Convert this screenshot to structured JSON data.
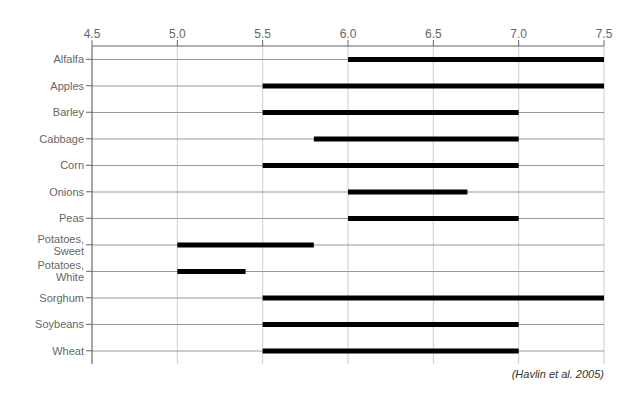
{
  "chart_data": {
    "type": "bar",
    "orientation": "horizontal",
    "annotation": "(Havlin et al. 2005)",
    "categories": [
      "Alfalfa",
      "Apples",
      "Barley",
      "Cabbage",
      "Corn",
      "Onions",
      "Peas",
      "Potatoes,\nSweet",
      "Potatoes,\nWhite",
      "Sorghum",
      "Soybeans",
      "Wheat"
    ],
    "values": [
      [
        6.0,
        7.5
      ],
      [
        5.5,
        7.5
      ],
      [
        5.5,
        7.0
      ],
      [
        5.8,
        7.0
      ],
      [
        5.5,
        7.0
      ],
      [
        6.0,
        6.7
      ],
      [
        6.0,
        7.0
      ],
      [
        5.0,
        5.8
      ],
      [
        5.0,
        5.4
      ],
      [
        5.5,
        7.5
      ],
      [
        5.5,
        7.0
      ],
      [
        5.5,
        7.0
      ]
    ],
    "color": "#000000",
    "xlim": [
      4.5,
      7.5
    ],
    "xticks": [
      4.5,
      {
        "value": 5,
        "label": "5.0"
      },
      5.5,
      {
        "value": 6,
        "label": "6.0"
      },
      6.5,
      {
        "value": 7,
        "label": "7.0"
      },
      7.5
    ],
    "grid": true
  }
}
